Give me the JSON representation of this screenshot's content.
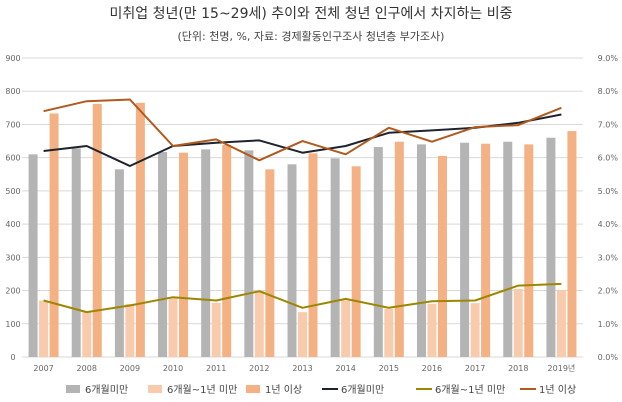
{
  "chart_data": {
    "type": "bar",
    "title": "미취업 청년(만 15~29세) 추이와 전체 청년 인구에서 차지하는 비중",
    "subtitle": "(단위: 천명, %, 자료: 경제활동인구조사 청년층 부가조사)",
    "categories": [
      "2007",
      "2008",
      "2009",
      "2010",
      "2011",
      "2012",
      "2013",
      "2014",
      "2015",
      "2016",
      "2017",
      "2018",
      "2019년"
    ],
    "left_axis": {
      "min": 0,
      "max": 900,
      "ticks": [
        "0",
        "100",
        "200",
        "300",
        "400",
        "500",
        "600",
        "700",
        "800",
        "900"
      ]
    },
    "right_axis": {
      "min": 0,
      "max": 9,
      "ticks": [
        "0.0%",
        "1.0%",
        "2.0%",
        "3.0%",
        "4.0%",
        "5.0%",
        "6.0%",
        "7.0%",
        "8.0%",
        "9.0%"
      ]
    },
    "grid": true,
    "legend_position": "bottom",
    "series": [
      {
        "name": "6개월미만",
        "kind": "bar",
        "axis": "left",
        "color": "#b4b4b4",
        "values": [
          610,
          628,
          565,
          617,
          625,
          622,
          580,
          598,
          632,
          640,
          645,
          648,
          660
        ]
      },
      {
        "name": "6개월~1년 미만",
        "kind": "bar",
        "axis": "left",
        "color": "#f8cbad",
        "values": [
          170,
          135,
          160,
          180,
          163,
          200,
          135,
          170,
          145,
          160,
          162,
          205,
          202
        ]
      },
      {
        "name": "1년 이상",
        "kind": "bar",
        "axis": "left",
        "color": "#f4b183",
        "values": [
          733,
          762,
          765,
          615,
          638,
          565,
          613,
          574,
          648,
          605,
          642,
          640,
          680
        ]
      },
      {
        "name": "6개월미만",
        "kind": "line",
        "axis": "right",
        "color": "#1f2330",
        "values": [
          6.2,
          6.35,
          5.75,
          6.35,
          6.45,
          6.52,
          6.15,
          6.35,
          6.75,
          6.82,
          6.9,
          7.05,
          7.3
        ]
      },
      {
        "name": "6개월~1년 미만",
        "kind": "line",
        "axis": "right",
        "color": "#9e8600",
        "values": [
          1.7,
          1.35,
          1.55,
          1.8,
          1.7,
          1.98,
          1.48,
          1.75,
          1.48,
          1.68,
          1.7,
          2.15,
          2.2
        ]
      },
      {
        "name": "1년 이상",
        "kind": "line",
        "axis": "right",
        "color": "#b05a1e",
        "values": [
          7.4,
          7.7,
          7.75,
          6.35,
          6.55,
          5.92,
          6.5,
          6.1,
          6.9,
          6.48,
          6.92,
          6.98,
          7.5
        ]
      }
    ]
  }
}
